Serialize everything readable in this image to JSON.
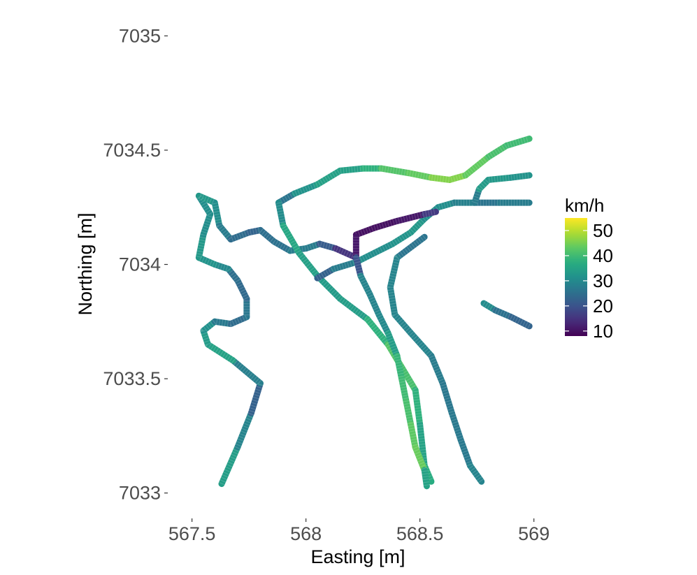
{
  "chart_data": {
    "type": "line",
    "title": "",
    "xlabel": "Easting [m]",
    "ylabel": "Northing [m]",
    "xlim": [
      567.4,
      569.05
    ],
    "ylim": [
      7032.95,
      7035.05
    ],
    "x_ticks": [
      567.5,
      568,
      568.5,
      569
    ],
    "x_tick_labels": [
      "567.5",
      "568",
      "568.5",
      "569"
    ],
    "y_ticks": [
      7033,
      7033.5,
      7034,
      7034.5,
      7035
    ],
    "y_tick_labels": [
      "7033",
      "7033.5",
      "7034",
      "7034.5",
      "7035"
    ],
    "grid": false,
    "color_scale": {
      "name": "viridis",
      "title": "km/h",
      "min": 8,
      "max": 55,
      "breaks": [
        10,
        20,
        30,
        40,
        50
      ],
      "break_labels": [
        "10",
        "20",
        "30",
        "40",
        "50"
      ],
      "colors": [
        "#440154",
        "#472d7b",
        "#3b528b",
        "#2c728e",
        "#21918c",
        "#28ae80",
        "#5ec962",
        "#addc30",
        "#fde725"
      ]
    },
    "legend_position": "right",
    "series": [
      {
        "points": [
          {
            "x": 567.63,
            "y": 7033.04,
            "v": 35
          },
          {
            "x": 567.7,
            "y": 7033.2,
            "v": 33
          },
          {
            "x": 567.76,
            "y": 7033.35,
            "v": 25
          },
          {
            "x": 567.8,
            "y": 7033.48,
            "v": 20
          },
          {
            "x": 567.68,
            "y": 7033.58,
            "v": 36
          },
          {
            "x": 567.57,
            "y": 7033.65,
            "v": 34
          },
          {
            "x": 567.55,
            "y": 7033.71,
            "v": 33
          },
          {
            "x": 567.6,
            "y": 7033.75,
            "v": 30
          },
          {
            "x": 567.67,
            "y": 7033.74,
            "v": 24
          },
          {
            "x": 567.74,
            "y": 7033.77,
            "v": 25
          },
          {
            "x": 567.74,
            "y": 7033.85,
            "v": 28
          },
          {
            "x": 567.7,
            "y": 7033.93,
            "v": 20
          },
          {
            "x": 567.66,
            "y": 7033.98,
            "v": 30
          },
          {
            "x": 567.6,
            "y": 7034.0,
            "v": 30
          },
          {
            "x": 567.53,
            "y": 7034.03,
            "v": 34
          },
          {
            "x": 567.55,
            "y": 7034.13,
            "v": 32
          },
          {
            "x": 567.58,
            "y": 7034.22,
            "v": 30
          },
          {
            "x": 567.53,
            "y": 7034.3,
            "v": 32
          },
          {
            "x": 567.6,
            "y": 7034.27,
            "v": 34
          },
          {
            "x": 567.62,
            "y": 7034.17,
            "v": 28
          },
          {
            "x": 567.67,
            "y": 7034.11,
            "v": 27
          },
          {
            "x": 567.75,
            "y": 7034.14,
            "v": 22
          },
          {
            "x": 567.8,
            "y": 7034.15,
            "v": 24
          },
          {
            "x": 567.86,
            "y": 7034.1,
            "v": 26
          },
          {
            "x": 567.93,
            "y": 7034.06,
            "v": 25
          },
          {
            "x": 568.0,
            "y": 7034.07,
            "v": 30
          },
          {
            "x": 568.06,
            "y": 7034.09,
            "v": 25
          },
          {
            "x": 568.13,
            "y": 7034.07,
            "v": 18
          },
          {
            "x": 568.22,
            "y": 7034.03,
            "v": 12
          }
        ]
      },
      {
        "points": [
          {
            "x": 567.88,
            "y": 7034.27,
            "v": 22
          },
          {
            "x": 567.95,
            "y": 7034.31,
            "v": 30
          },
          {
            "x": 568.05,
            "y": 7034.35,
            "v": 34
          },
          {
            "x": 568.15,
            "y": 7034.41,
            "v": 35
          },
          {
            "x": 568.25,
            "y": 7034.42,
            "v": 34
          },
          {
            "x": 568.33,
            "y": 7034.42,
            "v": 42
          },
          {
            "x": 568.45,
            "y": 7034.4,
            "v": 42
          },
          {
            "x": 568.55,
            "y": 7034.38,
            "v": 45
          },
          {
            "x": 568.63,
            "y": 7034.37,
            "v": 47
          },
          {
            "x": 568.7,
            "y": 7034.39,
            "v": 45
          },
          {
            "x": 568.8,
            "y": 7034.47,
            "v": 42
          },
          {
            "x": 568.88,
            "y": 7034.52,
            "v": 40
          },
          {
            "x": 568.98,
            "y": 7034.55,
            "v": 40
          }
        ]
      },
      {
        "points": [
          {
            "x": 567.88,
            "y": 7034.27,
            "v": 25
          },
          {
            "x": 567.9,
            "y": 7034.17,
            "v": 36
          },
          {
            "x": 567.97,
            "y": 7034.05,
            "v": 36
          },
          {
            "x": 568.05,
            "y": 7033.95,
            "v": 33
          },
          {
            "x": 568.15,
            "y": 7033.85,
            "v": 34
          },
          {
            "x": 568.27,
            "y": 7033.76,
            "v": 34
          },
          {
            "x": 568.36,
            "y": 7033.65,
            "v": 42
          },
          {
            "x": 568.42,
            "y": 7033.55,
            "v": 42
          },
          {
            "x": 568.48,
            "y": 7033.45,
            "v": 40
          },
          {
            "x": 568.5,
            "y": 7033.3,
            "v": 36
          },
          {
            "x": 568.52,
            "y": 7033.12,
            "v": 34
          },
          {
            "x": 568.55,
            "y": 7033.05,
            "v": 40
          }
        ]
      },
      {
        "points": [
          {
            "x": 568.05,
            "y": 7033.94,
            "v": 20
          },
          {
            "x": 568.12,
            "y": 7033.98,
            "v": 25
          },
          {
            "x": 568.22,
            "y": 7034.01,
            "v": 30
          },
          {
            "x": 568.3,
            "y": 7034.05,
            "v": 32
          },
          {
            "x": 568.38,
            "y": 7034.09,
            "v": 30
          },
          {
            "x": 568.46,
            "y": 7034.14,
            "v": 34
          },
          {
            "x": 568.52,
            "y": 7034.2,
            "v": 32
          },
          {
            "x": 568.58,
            "y": 7034.25,
            "v": 30
          },
          {
            "x": 568.65,
            "y": 7034.27,
            "v": 32
          },
          {
            "x": 568.75,
            "y": 7034.27,
            "v": 25
          },
          {
            "x": 568.85,
            "y": 7034.27,
            "v": 27
          },
          {
            "x": 568.98,
            "y": 7034.27,
            "v": 28
          }
        ]
      },
      {
        "points": [
          {
            "x": 568.22,
            "y": 7034.13,
            "v": 10
          },
          {
            "x": 568.3,
            "y": 7034.16,
            "v": 10
          },
          {
            "x": 568.4,
            "y": 7034.19,
            "v": 10
          },
          {
            "x": 568.52,
            "y": 7034.22,
            "v": 12
          },
          {
            "x": 568.57,
            "y": 7034.23,
            "v": 20
          }
        ]
      },
      {
        "points": [
          {
            "x": 568.22,
            "y": 7034.12,
            "v": 12
          },
          {
            "x": 568.22,
            "y": 7034.03,
            "v": 10
          },
          {
            "x": 568.24,
            "y": 7033.95,
            "v": 30
          },
          {
            "x": 568.28,
            "y": 7033.87,
            "v": 28
          },
          {
            "x": 568.32,
            "y": 7033.78,
            "v": 30
          },
          {
            "x": 568.36,
            "y": 7033.7,
            "v": 30
          },
          {
            "x": 568.4,
            "y": 7033.6,
            "v": 38
          },
          {
            "x": 568.42,
            "y": 7033.5,
            "v": 40
          },
          {
            "x": 568.44,
            "y": 7033.4,
            "v": 40
          },
          {
            "x": 568.46,
            "y": 7033.3,
            "v": 42
          },
          {
            "x": 568.48,
            "y": 7033.2,
            "v": 44
          },
          {
            "x": 568.52,
            "y": 7033.1,
            "v": 44
          },
          {
            "x": 568.53,
            "y": 7033.03,
            "v": 26
          }
        ]
      },
      {
        "points": [
          {
            "x": 568.52,
            "y": 7034.12,
            "v": 22
          },
          {
            "x": 568.4,
            "y": 7034.03,
            "v": 30
          },
          {
            "x": 568.37,
            "y": 7033.9,
            "v": 28
          },
          {
            "x": 568.39,
            "y": 7033.78,
            "v": 30
          },
          {
            "x": 568.46,
            "y": 7033.7,
            "v": 28
          },
          {
            "x": 568.55,
            "y": 7033.6,
            "v": 30
          },
          {
            "x": 568.6,
            "y": 7033.48,
            "v": 25
          },
          {
            "x": 568.64,
            "y": 7033.35,
            "v": 28
          },
          {
            "x": 568.68,
            "y": 7033.23,
            "v": 26
          },
          {
            "x": 568.72,
            "y": 7033.12,
            "v": 28
          },
          {
            "x": 568.77,
            "y": 7033.05,
            "v": 30
          }
        ]
      },
      {
        "points": [
          {
            "x": 568.74,
            "y": 7034.27,
            "v": 22
          },
          {
            "x": 568.76,
            "y": 7034.33,
            "v": 33
          },
          {
            "x": 568.8,
            "y": 7034.37,
            "v": 34
          },
          {
            "x": 568.9,
            "y": 7034.38,
            "v": 32
          },
          {
            "x": 568.98,
            "y": 7034.39,
            "v": 32
          }
        ]
      },
      {
        "points": [
          {
            "x": 568.78,
            "y": 7033.83,
            "v": 34
          },
          {
            "x": 568.83,
            "y": 7033.8,
            "v": 27
          },
          {
            "x": 568.9,
            "y": 7033.77,
            "v": 24
          },
          {
            "x": 568.98,
            "y": 7033.73,
            "v": 22
          }
        ]
      }
    ]
  }
}
